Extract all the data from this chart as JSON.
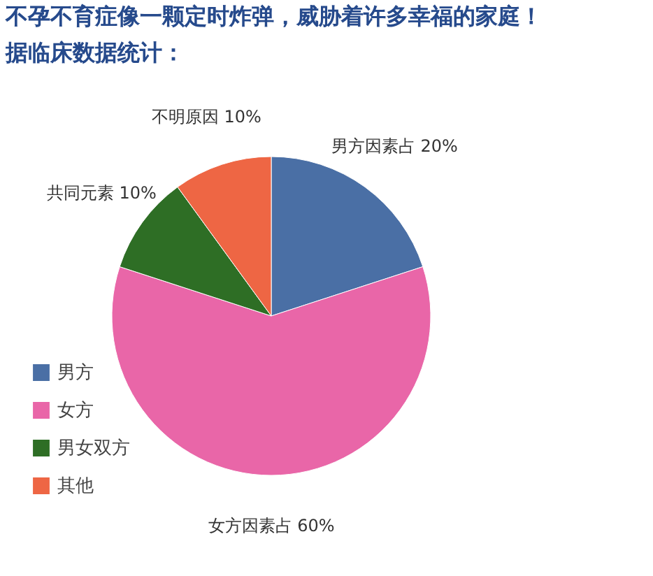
{
  "chart_data": {
    "type": "pie",
    "title": "不孕不育症像一颗定时炸弹，威胁着许多幸福的家庭！",
    "subtitle": "据临床数据统计：",
    "categories": [
      "男方",
      "女方",
      "男女双方",
      "其他"
    ],
    "values": [
      20,
      60,
      10,
      10
    ],
    "colors": [
      "#4a6fa5",
      "#e966a8",
      "#2e6e25",
      "#ee6644"
    ],
    "value_labels": [
      "男方因素占 20%",
      "女方因素占 60%",
      "共同元素 10%",
      "不明原因 10%"
    ],
    "legend": "bottom left"
  }
}
